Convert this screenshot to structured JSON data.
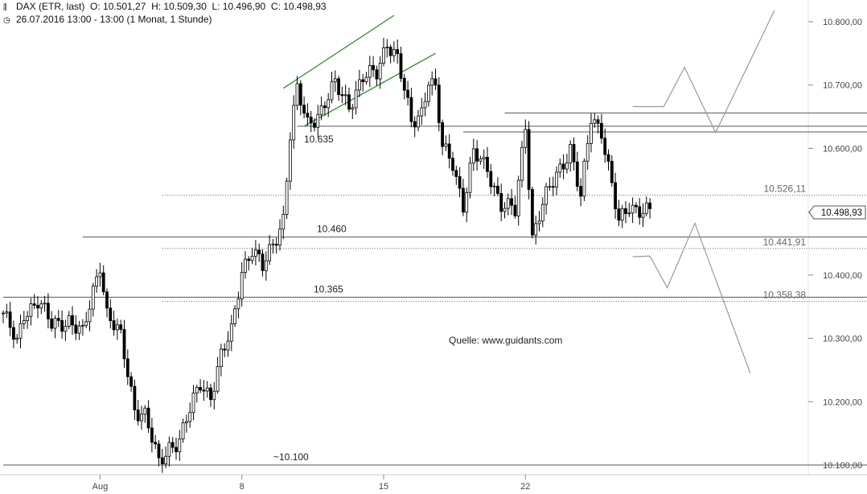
{
  "header": {
    "instrument": "DAX (ETR, last)",
    "open": "O: 10.501,27",
    "high": "H: 10.509,30",
    "low": "L: 10.496,90",
    "close": "C: 10.498,93",
    "timestamp": "26.07.2016 13:00 - 13:00 (1 Monat, 1 Stunde)"
  },
  "colors": {
    "candle": "#000000",
    "channel": "#2e8b2e",
    "scenario": "#9a9a9a",
    "level": "#555555"
  },
  "chart_data": {
    "type": "candlestick",
    "y_axis": {
      "range": [
        10090,
        10830
      ],
      "ticks": [
        "10.100,00",
        "10.200,00",
        "10.300,00",
        "10.400,00",
        "10.500,00",
        "10.600,00",
        "10.700,00",
        "10.800,00"
      ],
      "tick_values": [
        10100,
        10200,
        10300,
        10400,
        10500,
        10600,
        10700,
        10800
      ]
    },
    "x_axis": {
      "labels": [
        "Aug",
        "8",
        "15",
        "22"
      ],
      "label_index": [
        28,
        69,
        110,
        151
      ],
      "num_bars": 188
    },
    "anchors": [
      [
        0,
        10340
      ],
      [
        4,
        10290
      ],
      [
        6,
        10340
      ],
      [
        10,
        10360
      ],
      [
        14,
        10320
      ],
      [
        19,
        10330
      ],
      [
        23,
        10305
      ],
      [
        28,
        10420
      ],
      [
        30,
        10340
      ],
      [
        34,
        10300
      ],
      [
        36,
        10245
      ],
      [
        38,
        10190
      ],
      [
        41,
        10180
      ],
      [
        43,
        10140
      ],
      [
        45,
        10100
      ],
      [
        48,
        10130
      ],
      [
        51,
        10140
      ],
      [
        55,
        10200
      ],
      [
        57,
        10230
      ],
      [
        60,
        10210
      ],
      [
        63,
        10270
      ],
      [
        66,
        10310
      ],
      [
        69,
        10410
      ],
      [
        72,
        10440
      ],
      [
        75,
        10410
      ],
      [
        78,
        10450
      ],
      [
        81,
        10490
      ],
      [
        83,
        10620
      ],
      [
        85,
        10690
      ],
      [
        88,
        10640
      ],
      [
        92,
        10660
      ],
      [
        96,
        10700
      ],
      [
        100,
        10670
      ],
      [
        104,
        10710
      ],
      [
        108,
        10720
      ],
      [
        111,
        10770
      ],
      [
        114,
        10740
      ],
      [
        118,
        10640
      ],
      [
        121,
        10660
      ],
      [
        123,
        10710
      ],
      [
        125,
        10690
      ],
      [
        127,
        10600
      ],
      [
        130,
        10580
      ],
      [
        133,
        10510
      ],
      [
        136,
        10590
      ],
      [
        140,
        10570
      ],
      [
        144,
        10510
      ],
      [
        148,
        10500
      ],
      [
        151,
        10640
      ],
      [
        153,
        10460
      ],
      [
        156,
        10510
      ],
      [
        160,
        10560
      ],
      [
        164,
        10600
      ],
      [
        167,
        10520
      ],
      [
        170,
        10650
      ],
      [
        173,
        10630
      ],
      [
        176,
        10540
      ],
      [
        178,
        10480
      ],
      [
        181,
        10510
      ],
      [
        184,
        10505
      ],
      [
        187,
        10499
      ]
    ],
    "horizontal_levels": [
      {
        "label": "10.635",
        "value": 10635,
        "from_index": 85,
        "style": "solid"
      },
      {
        "label": "",
        "value": 10656,
        "from_index": 145,
        "style": "solid"
      },
      {
        "label": "",
        "value": 10626,
        "from_index": 133,
        "style": "solid"
      },
      {
        "label": "10.526,11",
        "value": 10526.11,
        "from_index": 46,
        "style": "dotted"
      },
      {
        "label": "10.460",
        "value": 10460,
        "from_index": 23,
        "style": "solid"
      },
      {
        "label": "10.441,91",
        "value": 10441.91,
        "from_index": 46,
        "style": "dotted"
      },
      {
        "label": "10.365",
        "value": 10365,
        "from_index": 0,
        "style": "solid"
      },
      {
        "label": "10.358,38",
        "value": 10358.38,
        "from_index": 46,
        "style": "dotted"
      },
      {
        "label": "~10.100",
        "value": 10100,
        "from_index": 0,
        "style": "solid"
      }
    ],
    "channel_lines": [
      {
        "from": [
          81,
          10695
        ],
        "to": [
          113,
          10810
        ]
      },
      {
        "from": [
          87,
          10635
        ],
        "to": [
          125,
          10750
        ]
      }
    ],
    "scenario_paths": [
      [
        [
          182,
          10666
        ],
        [
          191,
          10666
        ],
        [
          197,
          10728
        ],
        [
          206,
          10625
        ],
        [
          223,
          10818
        ]
      ],
      [
        [
          182,
          10429
        ],
        [
          187,
          10430
        ],
        [
          192,
          10380
        ],
        [
          200,
          10482
        ],
        [
          216,
          10245
        ]
      ]
    ],
    "last_price": {
      "label": "10.498,93",
      "value": 10498.93
    },
    "source_note": "Quelle: www.guidants.com"
  }
}
